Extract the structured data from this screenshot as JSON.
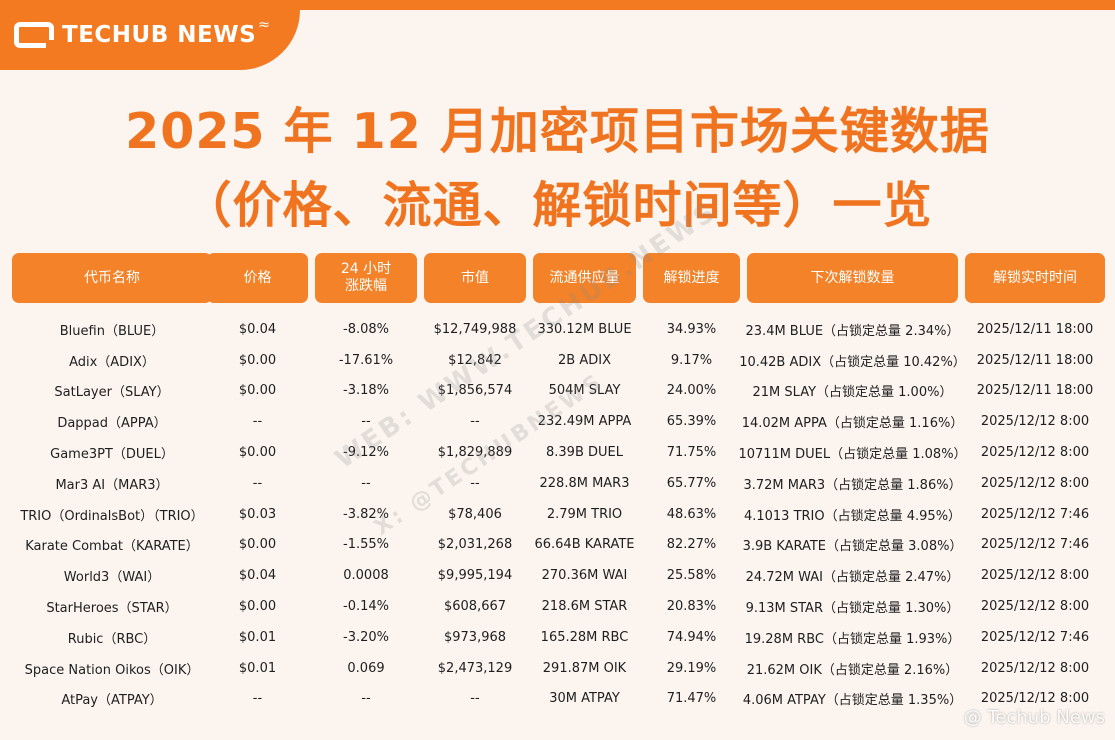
{
  "brand": {
    "logo_text": "TECHUB NEWS"
  },
  "title": {
    "line1": "2025 年 12 月加密项目市场关键数据",
    "line2": "（价格、流通、解锁时间等）一览"
  },
  "columns": [
    "代币名称",
    "价格",
    "24 小时\n涨跌幅",
    "市值",
    "流通供应量",
    "解锁进度",
    "下次解锁数量",
    "解锁实时时间"
  ],
  "rows": [
    [
      "Bluefin（BLUE）",
      "$0.04",
      "-8.08%",
      "$12,749,988",
      "330.12M BLUE",
      "34.93%",
      "23.4M BLUE（占锁定总量 2.34%）",
      "2025/12/11 18:00"
    ],
    [
      "Adix（ADIX）",
      "$0.00",
      "-17.61%",
      "$12,842",
      "2B ADIX",
      "9.17%",
      "10.42B ADIX（占锁定总量 10.42%）",
      "2025/12/11 18:00"
    ],
    [
      "SatLayer（SLAY）",
      "$0.00",
      "-3.18%",
      "$1,856,574",
      "504M SLAY",
      "24.00%",
      "21M SLAY（占锁定总量 1.00%）",
      "2025/12/11 18:00"
    ],
    [
      "Dappad（APPA）",
      "--",
      "--",
      "--",
      "232.49M APPA",
      "65.39%",
      "14.02M APPA（占锁定总量 1.16%）",
      "2025/12/12 8:00"
    ],
    [
      "Game3PT（DUEL）",
      "$0.00",
      "-9.12%",
      "$1,829,889",
      "8.39B DUEL",
      "71.75%",
      "10711M DUEL（占锁定总量 1.08%）",
      "2025/12/12 8:00"
    ],
    [
      "Mar3 AI（MAR3）",
      "--",
      "--",
      "--",
      "228.8M MAR3",
      "65.77%",
      "3.72M MAR3（占锁定总量 1.86%）",
      "2025/12/12 8:00"
    ],
    [
      "TRIO（OrdinalsBot）（TRIO）",
      "$0.03",
      "-3.82%",
      "$78,406",
      "2.79M TRIO",
      "48.63%",
      "4.1013 TRIO（占锁定总量 4.95%）",
      "2025/12/12 7:46"
    ],
    [
      "Karate Combat（KARATE）",
      "$0.00",
      "-1.55%",
      "$2,031,268",
      "66.64B KARATE",
      "82.27%",
      "3.9B KARATE（占锁定总量 3.08%）",
      "2025/12/12 7:46"
    ],
    [
      "World3（WAI）",
      "$0.04",
      "0.0008",
      "$9,995,194",
      "270.36M WAI",
      "25.58%",
      "24.72M WAI（占锁定总量 2.47%）",
      "2025/12/12 8:00"
    ],
    [
      "StarHeroes（STAR）",
      "$0.00",
      "-0.14%",
      "$608,667",
      "218.6M STAR",
      "20.83%",
      "9.13M STAR（占锁定总量 1.30%）",
      "2025/12/12 8:00"
    ],
    [
      "Rubic（RBC）",
      "$0.01",
      "-3.20%",
      "$973,968",
      "165.28M RBC",
      "74.94%",
      "19.28M RBC（占锁定总量 1.93%）",
      "2025/12/12 7:46"
    ],
    [
      "Space Nation Oikos（OIK）",
      "$0.01",
      "0.069",
      "$2,473,129",
      "291.87M OIK",
      "29.19%",
      "21.62M OIK（占锁定总量 2.16%）",
      "2025/12/12 8:00"
    ],
    [
      "AtPay（ATPAY）",
      "--",
      "--",
      "--",
      "30M ATPAY",
      "71.47%",
      "4.06M ATPAY（占锁定总量 1.35%）",
      "2025/12/12 8:00"
    ]
  ],
  "watermark": {
    "line1": "WEB: WWW.TECHUB.NEWS",
    "line2": "X: @TECHUBNEWS"
  },
  "footer": {
    "credit": "@ Techub News"
  },
  "colors": {
    "accent": "#f37a20",
    "title": "#f07420",
    "header_bg": "#f38228",
    "background": "#fbf4ef"
  }
}
